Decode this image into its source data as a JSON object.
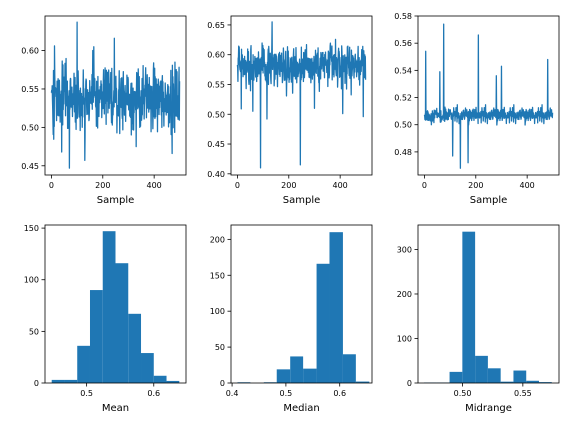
{
  "figure": {
    "background": "#ffffff",
    "series_color": "#1f77b4"
  },
  "chart_data": [
    {
      "type": "line",
      "xlabel": "Sample",
      "xlim": [
        -25,
        524
      ],
      "ylim": [
        0.438,
        0.645
      ],
      "xticks": [
        0,
        200,
        400
      ],
      "yticks": [
        0.45,
        0.5,
        0.55,
        0.6
      ],
      "ytick_labels": [
        "0.45",
        "0.50",
        "0.55",
        "0.60"
      ],
      "n_samples": 500,
      "center": 0.538,
      "spread": 0.028,
      "seed": 11,
      "extremes": [
        [
          12,
          0.606
        ],
        [
          40,
          0.468
        ],
        [
          70,
          0.447
        ],
        [
          100,
          0.637
        ],
        [
          130,
          0.457
        ],
        [
          165,
          0.605
        ],
        [
          245,
          0.616
        ],
        [
          330,
          0.475
        ],
        [
          430,
          0.5
        ],
        [
          470,
          0.466
        ]
      ]
    },
    {
      "type": "line",
      "xlabel": "Sample",
      "xlim": [
        -25,
        524
      ],
      "ylim": [
        0.398,
        0.665
      ],
      "xticks": [
        0,
        200,
        400
      ],
      "yticks": [
        0.4,
        0.45,
        0.5,
        0.55,
        0.6,
        0.65
      ],
      "ytick_labels": [
        "0.40",
        "0.45",
        "0.50",
        "0.55",
        "0.60",
        "0.65"
      ],
      "n_samples": 500,
      "center": 0.582,
      "spread": 0.024,
      "seed": 23,
      "extremes": [
        [
          15,
          0.509
        ],
        [
          60,
          0.505
        ],
        [
          90,
          0.41
        ],
        [
          115,
          0.492
        ],
        [
          135,
          0.655
        ],
        [
          245,
          0.415
        ],
        [
          300,
          0.51
        ],
        [
          410,
          0.501
        ],
        [
          490,
          0.496
        ]
      ]
    },
    {
      "type": "line",
      "xlabel": "Sample",
      "xlim": [
        -25,
        524
      ],
      "ylim": [
        0.463,
        0.58
      ],
      "xticks": [
        0,
        200,
        400
      ],
      "yticks": [
        0.48,
        0.5,
        0.52,
        0.54,
        0.56,
        0.58
      ],
      "ytick_labels": [
        "0.48",
        "0.50",
        "0.52",
        "0.54",
        "0.56",
        "0.58"
      ],
      "n_samples": 500,
      "center": 0.506,
      "spread": 0.004,
      "seed": 37,
      "extremes": [
        [
          5,
          0.554
        ],
        [
          60,
          0.539
        ],
        [
          75,
          0.574
        ],
        [
          110,
          0.477
        ],
        [
          140,
          0.468
        ],
        [
          170,
          0.472
        ],
        [
          210,
          0.566
        ],
        [
          280,
          0.536
        ],
        [
          300,
          0.543
        ],
        [
          480,
          0.548
        ]
      ]
    },
    {
      "type": "histogram",
      "xlabel": "Mean",
      "xlim": [
        0.438,
        0.648
      ],
      "ylim": [
        0,
        153
      ],
      "xticks": [
        0.5,
        0.6
      ],
      "xtick_labels": [
        "0.5",
        "0.6"
      ],
      "yticks": [
        0,
        50,
        100,
        150
      ],
      "bins": [
        [
          0.448,
          0.467,
          3
        ],
        [
          0.467,
          0.486,
          3
        ],
        [
          0.486,
          0.505,
          36
        ],
        [
          0.505,
          0.524,
          90
        ],
        [
          0.524,
          0.543,
          147
        ],
        [
          0.543,
          0.562,
          116
        ],
        [
          0.562,
          0.581,
          67
        ],
        [
          0.581,
          0.6,
          29
        ],
        [
          0.6,
          0.619,
          7
        ],
        [
          0.619,
          0.638,
          2
        ]
      ]
    },
    {
      "type": "histogram",
      "xlabel": "Median",
      "xlim": [
        0.398,
        0.66
      ],
      "ylim": [
        0,
        220
      ],
      "xticks": [
        0.4,
        0.5,
        0.6
      ],
      "xtick_labels": [
        "0.4",
        "0.5",
        "0.6"
      ],
      "yticks": [
        0,
        50,
        100,
        150,
        200
      ],
      "bins": [
        [
          0.41,
          0.434,
          1
        ],
        [
          0.434,
          0.459,
          0
        ],
        [
          0.459,
          0.483,
          1
        ],
        [
          0.483,
          0.508,
          19
        ],
        [
          0.508,
          0.532,
          37
        ],
        [
          0.532,
          0.557,
          20
        ],
        [
          0.557,
          0.581,
          166
        ],
        [
          0.581,
          0.606,
          210
        ],
        [
          0.606,
          0.63,
          40
        ],
        [
          0.63,
          0.655,
          2
        ]
      ]
    },
    {
      "type": "histogram",
      "xlabel": "Midrange",
      "xlim": [
        0.463,
        0.58
      ],
      "ylim": [
        0,
        355
      ],
      "xticks": [
        0.5,
        0.55
      ],
      "xtick_labels": [
        "0.50",
        "0.55"
      ],
      "yticks": [
        0,
        100,
        200,
        300
      ],
      "bins": [
        [
          0.468,
          0.4786,
          1
        ],
        [
          0.4786,
          0.4892,
          1
        ],
        [
          0.4892,
          0.4998,
          25
        ],
        [
          0.4998,
          0.5104,
          340
        ],
        [
          0.5104,
          0.521,
          61
        ],
        [
          0.521,
          0.5316,
          33
        ],
        [
          0.5316,
          0.5422,
          3
        ],
        [
          0.5422,
          0.5528,
          28
        ],
        [
          0.5528,
          0.5634,
          5
        ],
        [
          0.5634,
          0.574,
          2
        ]
      ]
    }
  ]
}
